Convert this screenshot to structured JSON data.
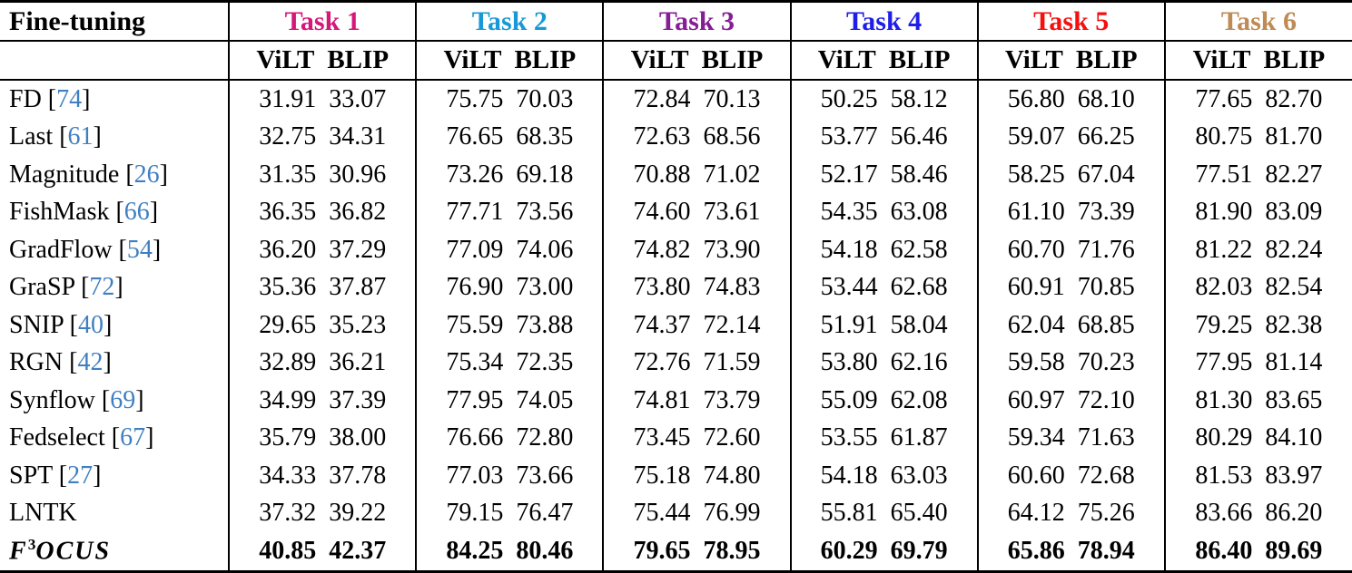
{
  "header": {
    "corner": "Fine-tuning",
    "tasks": [
      {
        "label": "Task 1",
        "color": "#d41779"
      },
      {
        "label": "Task 2",
        "color": "#1899d6"
      },
      {
        "label": "Task 3",
        "color": "#851d96"
      },
      {
        "label": "Task 4",
        "color": "#1e1ee8"
      },
      {
        "label": "Task 5",
        "color": "#f50f0f"
      },
      {
        "label": "Task 6",
        "color": "#bf8b55"
      }
    ],
    "model_columns": [
      "ViLT",
      "BLIP"
    ]
  },
  "citation_color": "#3f7fc1",
  "rows": [
    {
      "method": "FD",
      "cite": "74",
      "bold": false,
      "values": [
        "31.91",
        "33.07",
        "75.75",
        "70.03",
        "72.84",
        "70.13",
        "50.25",
        "58.12",
        "56.80",
        "68.10",
        "77.65",
        "82.70"
      ]
    },
    {
      "method": "Last",
      "cite": "61",
      "bold": false,
      "values": [
        "32.75",
        "34.31",
        "76.65",
        "68.35",
        "72.63",
        "68.56",
        "53.77",
        "56.46",
        "59.07",
        "66.25",
        "80.75",
        "81.70"
      ]
    },
    {
      "method": "Magnitude",
      "cite": "26",
      "bold": false,
      "values": [
        "31.35",
        "30.96",
        "73.26",
        "69.18",
        "70.88",
        "71.02",
        "52.17",
        "58.46",
        "58.25",
        "67.04",
        "77.51",
        "82.27"
      ]
    },
    {
      "method": "FishMask",
      "cite": "66",
      "bold": false,
      "values": [
        "36.35",
        "36.82",
        "77.71",
        "73.56",
        "74.60",
        "73.61",
        "54.35",
        "63.08",
        "61.10",
        "73.39",
        "81.90",
        "83.09"
      ]
    },
    {
      "method": "GradFlow",
      "cite": "54",
      "bold": false,
      "values": [
        "36.20",
        "37.29",
        "77.09",
        "74.06",
        "74.82",
        "73.90",
        "54.18",
        "62.58",
        "60.70",
        "71.76",
        "81.22",
        "82.24"
      ]
    },
    {
      "method": "GraSP",
      "cite": "72",
      "bold": false,
      "values": [
        "35.36",
        "37.87",
        "76.90",
        "73.00",
        "73.80",
        "74.83",
        "53.44",
        "62.68",
        "60.91",
        "70.85",
        "82.03",
        "82.54"
      ]
    },
    {
      "method": "SNIP",
      "cite": "40",
      "bold": false,
      "values": [
        "29.65",
        "35.23",
        "75.59",
        "73.88",
        "74.37",
        "72.14",
        "51.91",
        "58.04",
        "62.04",
        "68.85",
        "79.25",
        "82.38"
      ]
    },
    {
      "method": "RGN",
      "cite": "42",
      "bold": false,
      "values": [
        "32.89",
        "36.21",
        "75.34",
        "72.35",
        "72.76",
        "71.59",
        "53.80",
        "62.16",
        "59.58",
        "70.23",
        "77.95",
        "81.14"
      ]
    },
    {
      "method": "Synflow",
      "cite": "69",
      "bold": false,
      "values": [
        "34.99",
        "37.39",
        "77.95",
        "74.05",
        "74.81",
        "73.79",
        "55.09",
        "62.08",
        "60.97",
        "72.10",
        "81.30",
        "83.65"
      ]
    },
    {
      "method": "Fedselect",
      "cite": "67",
      "bold": false,
      "values": [
        "35.79",
        "38.00",
        "76.66",
        "72.80",
        "73.45",
        "72.60",
        "53.55",
        "61.87",
        "59.34",
        "71.63",
        "80.29",
        "84.10"
      ]
    },
    {
      "method": "SPT",
      "cite": "27",
      "bold": false,
      "values": [
        "34.33",
        "37.78",
        "77.03",
        "73.66",
        "75.18",
        "74.80",
        "54.18",
        "63.03",
        "60.60",
        "72.68",
        "81.53",
        "83.97"
      ]
    },
    {
      "method": "LNTK",
      "cite": null,
      "bold": false,
      "values": [
        "37.32",
        "39.22",
        "79.15",
        "76.47",
        "75.44",
        "76.99",
        "55.81",
        "65.40",
        "64.12",
        "75.26",
        "83.66",
        "86.20"
      ]
    },
    {
      "method": "F3OCUS",
      "cite": null,
      "bold": true,
      "method_parts": {
        "base": "F",
        "sup": "3",
        "rest": "OCUS"
      },
      "values": [
        "40.85",
        "42.37",
        "84.25",
        "80.46",
        "79.65",
        "78.95",
        "60.29",
        "69.79",
        "65.86",
        "78.94",
        "86.40",
        "89.69"
      ]
    }
  ]
}
